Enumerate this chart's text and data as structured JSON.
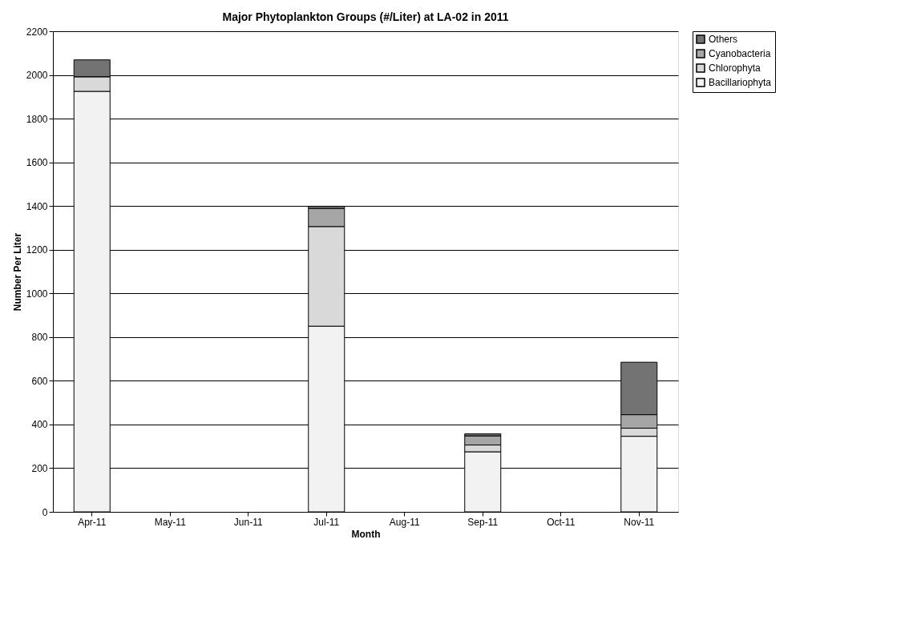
{
  "chart_data": {
    "type": "bar",
    "stacked": true,
    "title": "Major Phytoplankton Groups (#/Liter) at LA-02 in 2011",
    "xlabel": "Month",
    "ylabel": "Number Per Liter",
    "categories": [
      "Apr-11",
      "May-11",
      "Jun-11",
      "Jul-11",
      "Aug-11",
      "Sep-11",
      "Oct-11",
      "Nov-11"
    ],
    "series": [
      {
        "name": "Bacillariophyta",
        "color": "#f2f2f2",
        "values": [
          1925,
          null,
          null,
          850,
          null,
          275,
          null,
          346
        ]
      },
      {
        "name": "Chlorophyta",
        "color": "#d9d9d9",
        "values": [
          67,
          null,
          null,
          456,
          null,
          31,
          null,
          37
        ]
      },
      {
        "name": "Cyanobacteria",
        "color": "#a6a6a6",
        "values": [
          0,
          null,
          null,
          83,
          null,
          42,
          null,
          62
        ]
      },
      {
        "name": "Others",
        "color": "#737373",
        "values": [
          77,
          null,
          null,
          10,
          null,
          9,
          null,
          240
        ]
      }
    ],
    "ylim": [
      0,
      2200
    ],
    "yticks": [
      0,
      200,
      400,
      600,
      800,
      1000,
      1200,
      1400,
      1600,
      1800,
      2000,
      2200
    ],
    "grid": "y",
    "legend": "right"
  }
}
